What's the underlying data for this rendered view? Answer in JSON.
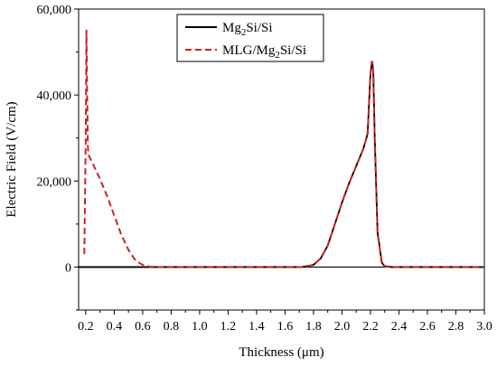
{
  "chart_data": {
    "type": "line",
    "title": "",
    "xlabel": "Thickness (μm)",
    "ylabel": "Electric Field (V/cm)",
    "xlim": [
      0.15,
      3.0
    ],
    "ylim": [
      -10000,
      60000
    ],
    "x_ticks": [
      0.2,
      0.4,
      0.6,
      0.8,
      1.0,
      1.2,
      1.4,
      1.6,
      1.8,
      2.0,
      2.2,
      2.4,
      2.6,
      2.8,
      3.0
    ],
    "x_tick_labels": [
      "0.2",
      "0.4",
      "0.6",
      "0.8",
      "1.0",
      "1.2",
      "1.4",
      "1.6",
      "1.8",
      "2.0",
      "2.2",
      "2.4",
      "2.6",
      "2.8",
      "3.0"
    ],
    "y_ticks": [
      0,
      20000,
      40000,
      60000
    ],
    "y_tick_labels": [
      "0",
      "20,000",
      "40,000",
      "60,000"
    ],
    "legend": {
      "position": "top-center"
    },
    "grid": false,
    "series": [
      {
        "name": "Mg2Si/Si",
        "legend_parts": [
          {
            "text": "Mg",
            "sub": false
          },
          {
            "text": "2",
            "sub": true
          },
          {
            "text": "Si/Si",
            "sub": false
          }
        ],
        "color": "#000000",
        "style": "solid",
        "x": [
          0.15,
          0.5,
          1.0,
          1.5,
          1.72,
          1.8,
          1.85,
          1.9,
          1.95,
          2.0,
          2.05,
          2.1,
          2.15,
          2.18,
          2.2,
          2.21,
          2.215,
          2.22,
          2.23,
          2.25,
          2.28,
          2.3,
          2.35,
          2.5,
          3.0
        ],
        "y": [
          0,
          0,
          0,
          0,
          0,
          500,
          2000,
          5000,
          10000,
          15000,
          19500,
          23500,
          27500,
          31000,
          45000,
          47500,
          47000,
          45000,
          30000,
          8000,
          1000,
          200,
          0,
          0,
          0
        ]
      },
      {
        "name": "MLG/Mg2Si/Si",
        "legend_parts": [
          {
            "text": "MLG/Mg",
            "sub": false
          },
          {
            "text": "2",
            "sub": true
          },
          {
            "text": "Si/Si",
            "sub": false
          }
        ],
        "color": "#cc2222",
        "style": "dashed",
        "x": [
          0.19,
          0.2,
          0.205,
          0.21,
          0.215,
          0.22,
          0.25,
          0.3,
          0.35,
          0.4,
          0.45,
          0.5,
          0.55,
          0.6,
          0.65,
          0.7,
          1.0,
          1.5,
          1.72,
          1.8,
          1.85,
          1.9,
          1.95,
          2.0,
          2.05,
          2.1,
          2.15,
          2.18,
          2.2,
          2.21,
          2.215,
          2.22,
          2.23,
          2.25,
          2.28,
          2.3,
          2.35,
          2.5,
          3.0
        ],
        "y": [
          3000,
          30000,
          55000,
          40000,
          28000,
          26000,
          24000,
          20500,
          16500,
          12000,
          7500,
          4000,
          1500,
          500,
          100,
          0,
          0,
          0,
          0,
          500,
          2000,
          5000,
          10000,
          15000,
          19500,
          23500,
          27500,
          31000,
          45000,
          47800,
          47500,
          45000,
          30000,
          8000,
          1000,
          200,
          0,
          0,
          0
        ]
      }
    ]
  }
}
